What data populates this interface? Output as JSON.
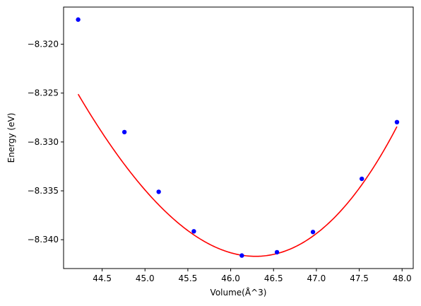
{
  "chart_data": {
    "type": "scatter",
    "title": "",
    "xlabel": "Volume(Å^3)",
    "ylabel": "Energy (eV)",
    "xlim": [
      44.05,
      48.13
    ],
    "ylim": [
      -8.34295,
      -8.3162
    ],
    "x_ticks": [
      44.5,
      45.0,
      45.5,
      46.0,
      46.5,
      47.0,
      47.5,
      48.0
    ],
    "x_tick_labels": [
      "44.5",
      "45.0",
      "45.5",
      "46.0",
      "46.5",
      "47.0",
      "47.5",
      "48.0"
    ],
    "y_ticks": [
      -8.32,
      -8.325,
      -8.33,
      -8.335,
      -8.34
    ],
    "y_tick_labels": [
      "−8.320",
      "−8.325",
      "−8.330",
      "−8.335",
      "−8.340"
    ],
    "grid": false,
    "series": [
      {
        "kind": "points",
        "color": "#0000ff",
        "x": [
          44.22,
          44.76,
          45.16,
          45.57,
          46.13,
          46.54,
          46.96,
          47.53,
          47.94
        ],
        "y": [
          -8.31748,
          -8.32899,
          -8.3351,
          -8.33914,
          -8.34162,
          -8.34128,
          -8.33921,
          -8.33377,
          -8.32797
        ]
      },
      {
        "kind": "fit-curve",
        "color": "#ff0000",
        "x_min": 44.22,
        "x_max": 47.94,
        "minimum": {
          "x": 46.29,
          "y": -8.3417
        },
        "curvature": 0.00443,
        "cubic_term": 0.00027
      }
    ]
  }
}
